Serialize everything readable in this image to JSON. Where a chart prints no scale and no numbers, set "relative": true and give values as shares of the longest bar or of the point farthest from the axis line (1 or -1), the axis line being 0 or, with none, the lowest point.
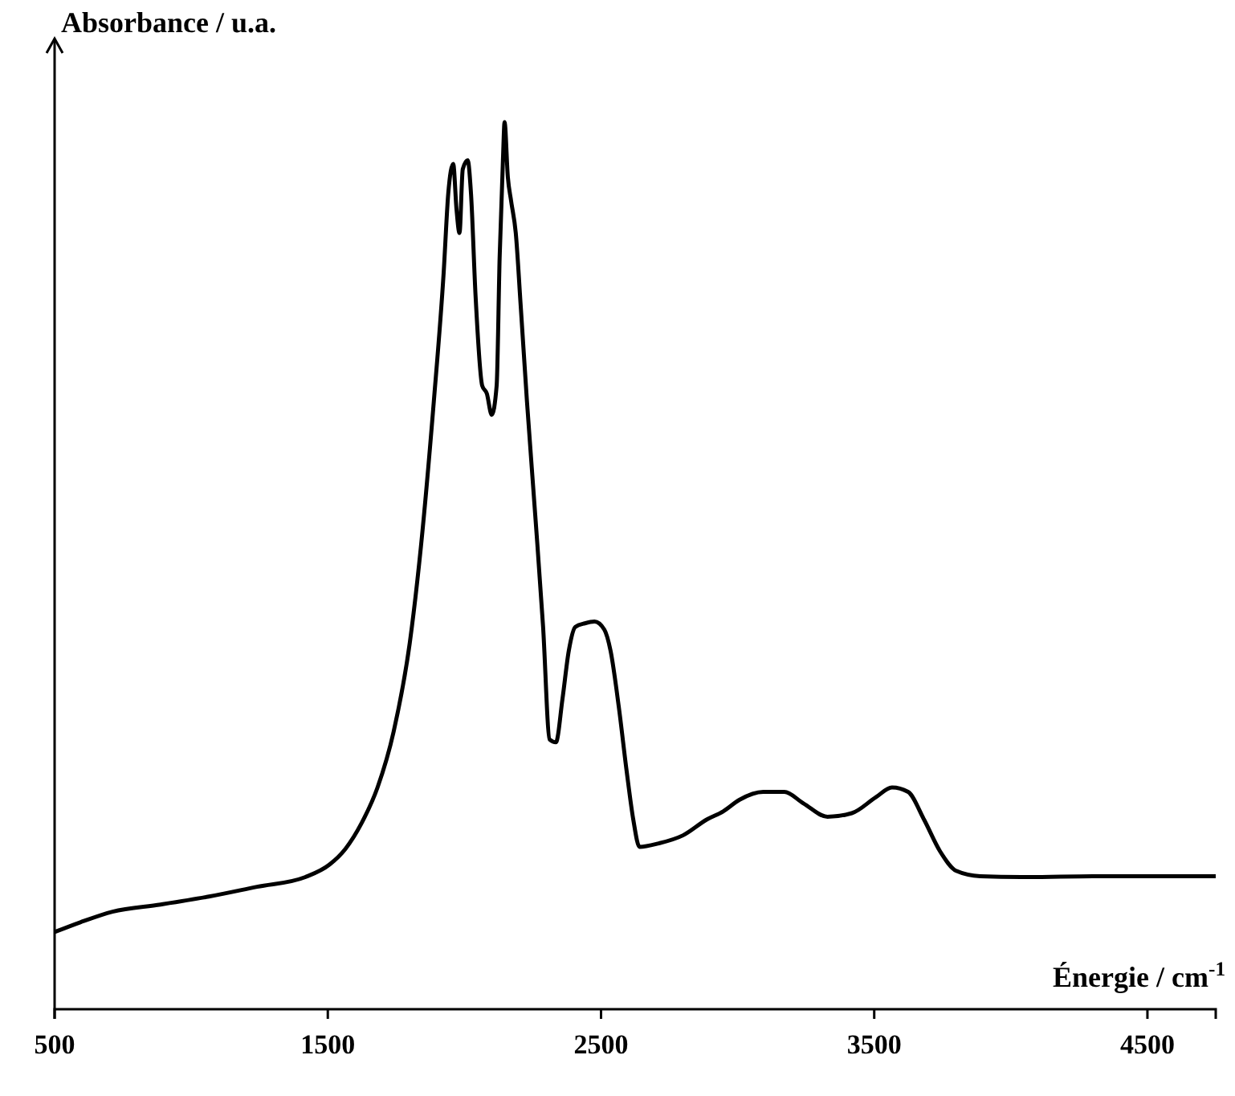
{
  "chart_data": {
    "type": "line",
    "relative": true,
    "xlabel": "Énergie / cm$^{-1}$",
    "ylabel": "Absorbance / u.a.",
    "xlim": [
      500,
      4750
    ],
    "xticks": [
      500,
      1500,
      2500,
      3500,
      4500
    ],
    "grid": false,
    "marker": "none",
    "line_style": "solid",
    "series": [
      {
        "color": "#000000",
        "x": [
          500,
          594,
          712,
          888,
          1065,
          1241,
          1418,
          1506,
          1565,
          1624,
          1682,
          1741,
          1800,
          1841,
          1888,
          1924,
          1941,
          1959,
          1971,
          1982,
          1994,
          2012,
          2024,
          2041,
          2065,
          2082,
          2100,
          2118,
          2129,
          2141,
          2147,
          2159,
          2171,
          2188,
          2206,
          2229,
          2259,
          2288,
          2312,
          2335,
          2359,
          2382,
          2406,
          2441,
          2476,
          2512,
          2535,
          2565,
          2594,
          2618,
          2641,
          2712,
          2800,
          2888,
          2947,
          3006,
          3094,
          3171,
          3241,
          3329,
          3418,
          3506,
          3565,
          3624,
          3682,
          3741,
          3800,
          3888,
          4065,
          4300,
          4535,
          4750
        ],
        "values": [
          0.087,
          0.098,
          0.11,
          0.118,
          0.127,
          0.138,
          0.149,
          0.163,
          0.181,
          0.21,
          0.25,
          0.313,
          0.413,
          0.522,
          0.685,
          0.83,
          0.92,
          0.953,
          0.902,
          0.875,
          0.947,
          0.957,
          0.92,
          0.803,
          0.703,
          0.694,
          0.67,
          0.703,
          0.848,
          0.957,
          1,
          0.938,
          0.911,
          0.875,
          0.793,
          0.685,
          0.558,
          0.431,
          0.304,
          0.301,
          0.35,
          0.404,
          0.431,
          0.435,
          0.437,
          0.428,
          0.404,
          0.341,
          0.268,
          0.214,
          0.183,
          0.187,
          0.196,
          0.214,
          0.223,
          0.236,
          0.245,
          0.245,
          0.232,
          0.217,
          0.221,
          0.239,
          0.25,
          0.245,
          0.214,
          0.178,
          0.156,
          0.15,
          0.149,
          0.15,
          0.15,
          0.15
        ]
      }
    ]
  }
}
